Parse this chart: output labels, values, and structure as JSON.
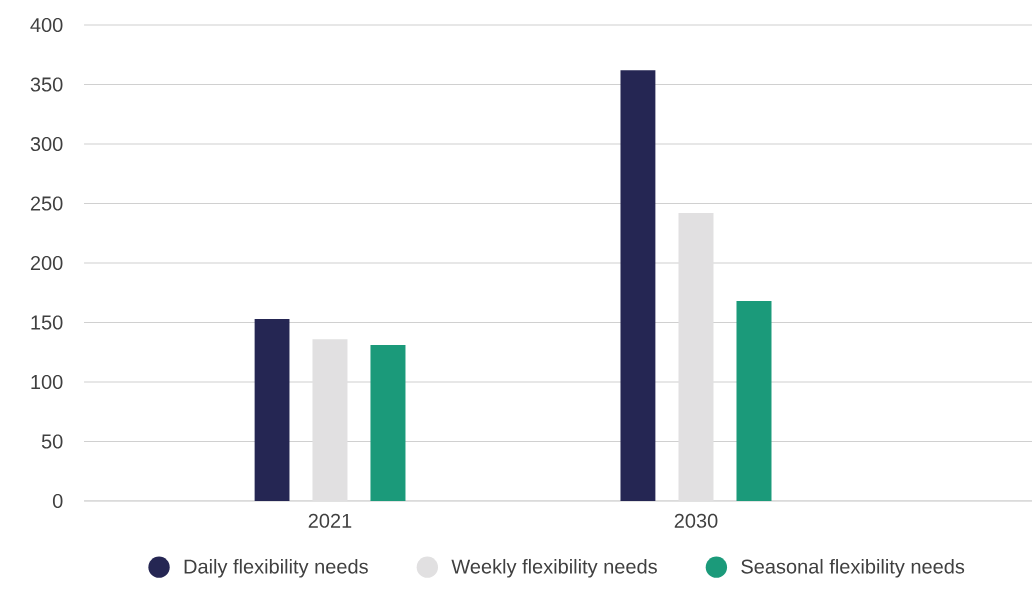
{
  "chart_data": {
    "type": "bar",
    "categories": [
      "2021",
      "2030"
    ],
    "series": [
      {
        "name": "Daily flexibility needs",
        "color": "#252653",
        "values": [
          153,
          362
        ]
      },
      {
        "name": "Weekly flexibility needs",
        "color": "#e1e0e1",
        "values": [
          136,
          242
        ]
      },
      {
        "name": "Seasonal flexibility needs",
        "color": "#1b9a7a",
        "values": [
          131,
          168
        ]
      }
    ],
    "ylim": [
      0,
      400
    ],
    "yticks": [
      0,
      50,
      100,
      150,
      200,
      250,
      300,
      350,
      400
    ],
    "grid": "y",
    "legend": "bottom"
  }
}
